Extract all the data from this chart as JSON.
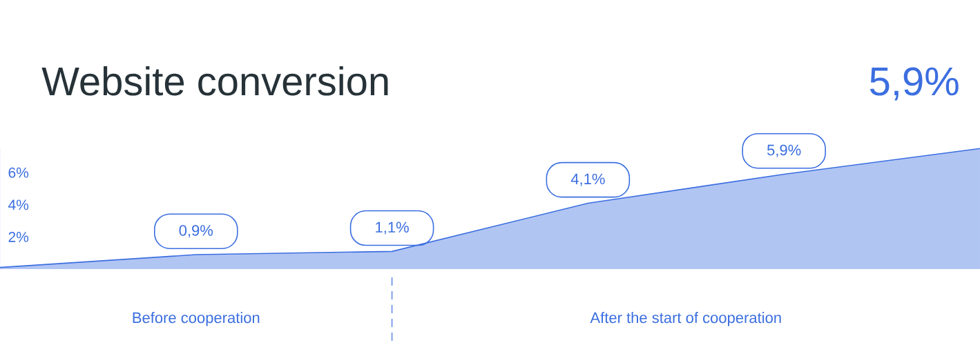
{
  "chart_data": {
    "type": "area",
    "title": "Website conversion",
    "categories": [
      null,
      null,
      null,
      null,
      null,
      null
    ],
    "values": [
      0.1,
      0.9,
      1.1,
      4.1,
      5.9,
      7.5
    ],
    "value_labels": [
      null,
      "0,9%",
      "1,1%",
      "4,1%",
      "5,9%",
      null
    ],
    "color": "#3b6ee0",
    "ylim": [
      0,
      7.5
    ],
    "yticks": [
      {
        "value": 2,
        "label": "2%"
      },
      {
        "value": 4,
        "label": "4%"
      },
      {
        "value": 6,
        "label": "6%"
      }
    ],
    "annotations": [
      "5,9%",
      "Before cooperation",
      "After the start of cooperation"
    ]
  }
}
